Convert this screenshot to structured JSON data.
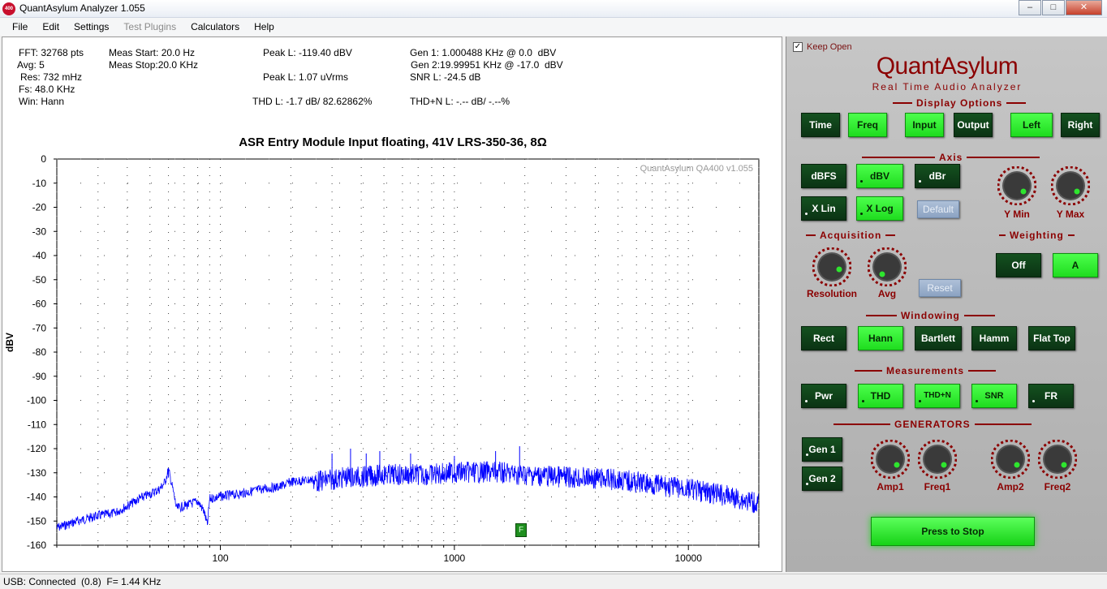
{
  "window": {
    "title": "QuantAsylum Analyzer 1.055",
    "icon_text": "400",
    "minimize": "–",
    "maximize": "□",
    "close": "✕"
  },
  "menu": [
    {
      "label": "File",
      "enabled": true
    },
    {
      "label": "Edit",
      "enabled": true
    },
    {
      "label": "Settings",
      "enabled": true
    },
    {
      "label": "Test Plugins",
      "enabled": false
    },
    {
      "label": "Calculators",
      "enabled": true
    },
    {
      "label": "Help",
      "enabled": true
    }
  ],
  "stats": {
    "fft": "FFT: 32768 pts",
    "avg": "Avg: 5",
    "res": "Res: 732 mHz",
    "fs": "Fs: 48.0 KHz",
    "win": "Win: Hann",
    "meas_start": "Meas Start: 20.0 Hz",
    "meas_stop": "Meas Stop:20.0 KHz",
    "peak_l_dbv": "Peak L: -119.40 dBV",
    "peak_l_vrms": "Peak L: 1.07 uVrms",
    "thd_l": "THD L: -1.7 dB/ 82.62862%",
    "gen1": "Gen 1: 1.000488 KHz @ 0.0  dBV",
    "gen2": "Gen 2:19.99951 KHz @ -17.0  dBV",
    "snr_l": "SNR L: -24.5 dB",
    "thdn_l": "THD+N L: -.-- dB/ -.--%"
  },
  "chart_data": {
    "type": "line",
    "title": "ASR Entry Module Input floating, 41V LRS-350-36, 8Ω",
    "watermark": "QuantAsylum QA400 v1.055",
    "xlabel": "",
    "ylabel": "dBV",
    "x_scale": "log",
    "xlim": [
      20,
      20000
    ],
    "ylim": [
      -160,
      0
    ],
    "grid": true,
    "x_ticks": [
      "100",
      "1000",
      "10000"
    ],
    "y_ticks": [
      "0",
      "-10",
      "-20",
      "-30",
      "-40",
      "-50",
      "-60",
      "-70",
      "-80",
      "-90",
      "-100",
      "-110",
      "-120",
      "-130",
      "-140",
      "-150",
      "-160"
    ],
    "series": [
      {
        "color": "#0000ff",
        "x": [
          20,
          25,
          30,
          35,
          40,
          45,
          50,
          55,
          58,
          60,
          62,
          65,
          70,
          75,
          80,
          85,
          88,
          90,
          100,
          120,
          150,
          180,
          200,
          250,
          300,
          350,
          400,
          500,
          600,
          800,
          1000,
          1500,
          2000,
          3000,
          5000,
          7000,
          10000,
          15000,
          20000
        ],
        "y": [
          -152,
          -149,
          -147,
          -146,
          -143,
          -140,
          -138,
          -136,
          -133,
          -128,
          -134,
          -144,
          -143,
          -142,
          -141,
          -145,
          -151,
          -140,
          -139,
          -138,
          -136,
          -135,
          -133,
          -132,
          -131,
          -130,
          -130,
          -129,
          -129,
          -129,
          -128,
          -128,
          -129,
          -130,
          -131,
          -133,
          -135,
          -138,
          -141
        ]
      }
    ],
    "spikes": [
      {
        "x": 60,
        "y": -128
      },
      {
        "x": 300,
        "y": -122
      },
      {
        "x": 360,
        "y": -120
      },
      {
        "x": 420,
        "y": -122
      },
      {
        "x": 480,
        "y": -121
      },
      {
        "x": 650,
        "y": -122
      },
      {
        "x": 1000,
        "y": -123
      },
      {
        "x": 1500,
        "y": -121
      },
      {
        "x": 1900,
        "y": -119
      }
    ]
  },
  "marker_label": "F",
  "panel": {
    "keep_open": "Keep Open",
    "keep_open_checked": true,
    "brand": "QuantAsylum",
    "brand_sub": "Real Time Audio Analyzer",
    "sections": {
      "display": "Display Options",
      "axis": "Axis",
      "acquisition": "Acquisition",
      "weighting": "Weighting",
      "windowing": "Windowing",
      "measurements": "Measurements",
      "generators": "GENERATORS"
    },
    "display_buttons": [
      {
        "label": "Time",
        "on": false
      },
      {
        "label": "Freq",
        "on": true
      },
      {
        "label": "Input",
        "on": true
      },
      {
        "label": "Output",
        "on": false
      },
      {
        "label": "Left",
        "on": true
      },
      {
        "label": "Right",
        "on": false
      }
    ],
    "axis_buttons": [
      {
        "label": "dBFS",
        "on": false
      },
      {
        "label": "dBV",
        "on": true
      },
      {
        "label": "dBr",
        "on": false
      },
      {
        "label": "X Lin",
        "on": false
      },
      {
        "label": "X Log",
        "on": true
      },
      {
        "label": "Default",
        "on": false
      }
    ],
    "axis_knobs": [
      "Y Min",
      "Y Max"
    ],
    "acq_knobs": [
      "Resolution",
      "Avg"
    ],
    "reset": "Reset",
    "weighting_buttons": [
      {
        "label": "Off",
        "on": false
      },
      {
        "label": "A",
        "on": true
      }
    ],
    "window_buttons": [
      {
        "label": "Rect",
        "on": false
      },
      {
        "label": "Hann",
        "on": true
      },
      {
        "label": "Bartlett",
        "on": false
      },
      {
        "label": "Hamm",
        "on": false
      },
      {
        "label": "Flat Top",
        "on": false
      }
    ],
    "meas_buttons": [
      {
        "label": "Pwr",
        "on": false
      },
      {
        "label": "THD",
        "on": true
      },
      {
        "label": "THD+N",
        "on": true
      },
      {
        "label": "SNR",
        "on": true
      },
      {
        "label": "FR",
        "on": false
      }
    ],
    "gen_buttons": [
      {
        "label": "Gen 1",
        "on": false
      },
      {
        "label": "Gen 2",
        "on": false
      }
    ],
    "gen_knobs": [
      "Amp1",
      "Freq1",
      "Amp2",
      "Freq2"
    ],
    "stop": "Press to Stop"
  },
  "status": "USB: Connected  (0.8)  F= 1.44 KHz"
}
